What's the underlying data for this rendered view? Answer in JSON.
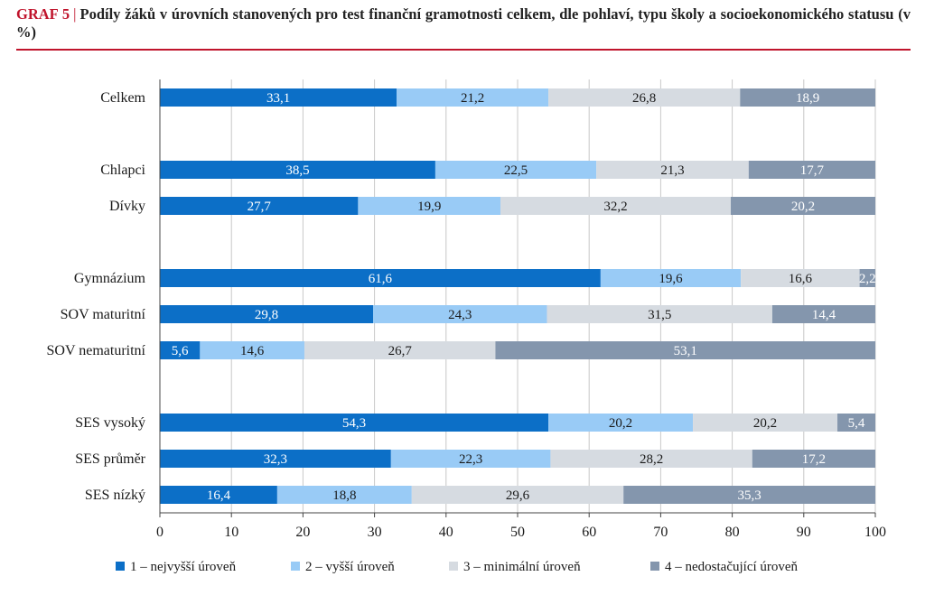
{
  "title": {
    "lead": "GRAF 5",
    "separator": "|",
    "text": "Podíly žáků v úrovních stanovených pro test finanční gramotnosti celkem, dle pohlaví, typu školy a socioekonomického statusu (v %)"
  },
  "chart_data": {
    "type": "bar",
    "orientation": "horizontal",
    "stacked": true,
    "title": "GRAF 5 | Podíly žáků v úrovních stanovených pro test finanční gramotnosti celkem, dle pohlaví, typu školy a socioekonomického statusu (v %)",
    "categories": [
      "Celkem",
      "Chlapci",
      "Dívky",
      "Gymnázium",
      "SOV maturitní",
      "SOV nematuritní",
      "SES vysoký",
      "SES průměr",
      "SES nízký"
    ],
    "groups": [
      [
        "Celkem"
      ],
      [
        "Chlapci",
        "Dívky"
      ],
      [
        "Gymnázium",
        "SOV maturitní",
        "SOV nematuritní"
      ],
      [
        "SES vysoký",
        "SES průměr",
        "SES nízký"
      ]
    ],
    "series": [
      {
        "name": "1 – nejvyšší úroveň",
        "color": "#0c6fc7",
        "label_color": "#ffffff",
        "values": [
          33.1,
          38.5,
          27.7,
          61.6,
          29.8,
          5.6,
          54.3,
          32.3,
          16.4
        ]
      },
      {
        "name": "2 – vyšší úroveň",
        "color": "#99cbf6",
        "label_color": "#1a1a1a",
        "values": [
          21.2,
          22.5,
          19.9,
          19.6,
          24.3,
          14.6,
          20.2,
          22.3,
          18.8
        ]
      },
      {
        "name": "3 – minimální úroveň",
        "color": "#d6dbe1",
        "label_color": "#1a1a1a",
        "values": [
          26.8,
          21.3,
          32.2,
          16.6,
          31.5,
          26.7,
          20.2,
          28.2,
          29.6
        ]
      },
      {
        "name": "4 – nedostačující úroveň",
        "color": "#8496ad",
        "label_color": "#ffffff",
        "values": [
          18.9,
          17.7,
          20.2,
          2.2,
          14.4,
          53.1,
          5.4,
          17.2,
          35.3
        ]
      }
    ],
    "data_labels": [
      [
        "33,1",
        "21,2",
        "26,8",
        "18,9"
      ],
      [
        "38,5",
        "22,5",
        "21,3",
        "17,7"
      ],
      [
        "27,7",
        "19,9",
        "32,2",
        "20,2"
      ],
      [
        "61,6",
        "19,6",
        "16,6",
        "2,2"
      ],
      [
        "29,8",
        "24,3",
        "31,5",
        "14,4"
      ],
      [
        "5,6",
        "14,6",
        "26,7",
        "53,1"
      ],
      [
        "54,3",
        "20,2",
        "20,2",
        "5,4"
      ],
      [
        "32,3",
        "22,3",
        "28,2",
        "17,2"
      ],
      [
        "16,4",
        "18,8",
        "29,6",
        "35,3"
      ]
    ],
    "xlim": [
      0,
      100
    ],
    "xticks": [
      0,
      10,
      20,
      30,
      40,
      50,
      60,
      70,
      80,
      90,
      100
    ],
    "xlabel": "",
    "ylabel": "",
    "grid": "vertical",
    "legend": "bottom"
  }
}
